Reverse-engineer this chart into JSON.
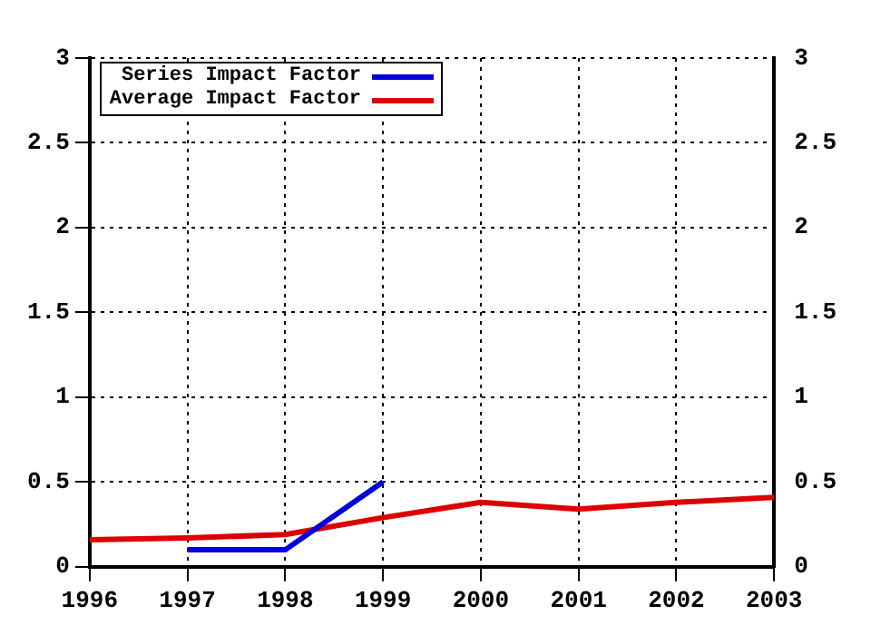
{
  "chart_data": {
    "type": "line",
    "x": [
      1996,
      1997,
      1998,
      1999,
      2000,
      2001,
      2002,
      2003
    ],
    "series": [
      {
        "name": "Series Impact Factor",
        "color": "#0000dd",
        "x": [
          1997,
          1998,
          1999
        ],
        "values": [
          0.1,
          0.1,
          0.5
        ]
      },
      {
        "name": "Average Impact Factor",
        "color": "#dd0000",
        "values": [
          0.16,
          0.17,
          0.19,
          0.29,
          0.38,
          0.34,
          0.38,
          0.41
        ]
      }
    ],
    "xlim": [
      1996,
      2003
    ],
    "xticks": [
      1996,
      1997,
      1998,
      1999,
      2000,
      2001,
      2002,
      2003
    ],
    "ylim": [
      0,
      3
    ],
    "yticks": [
      0,
      0.5,
      1,
      1.5,
      2,
      2.5,
      3
    ],
    "y2lim": [
      0,
      3
    ],
    "y2ticks": [
      0,
      0.5,
      1,
      1.5,
      2,
      2.5,
      3
    ],
    "grid": true,
    "legend": "top left",
    "marker": "none",
    "line_style": "solid"
  }
}
